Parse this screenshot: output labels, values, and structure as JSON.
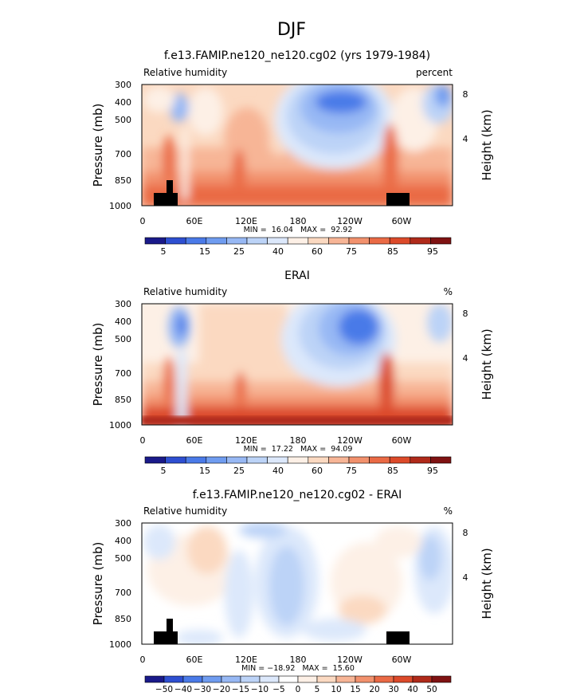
{
  "figure_title": "DJF",
  "chart_data": [
    {
      "type": "heatmap",
      "title": "f.e13.FAMIP.ne120_ne120.cg02 (yrs 1979-1984)",
      "left_label": "Relative humidity",
      "right_label": "percent",
      "ylabel": "Pressure (mb)",
      "ylabel_right": "Height (km)",
      "x_ticks": [
        "0",
        "60E",
        "120E",
        "180",
        "120W",
        "60W"
      ],
      "y_ticks": [
        "300",
        "400",
        "500",
        "700",
        "850",
        "1000"
      ],
      "right_ticks": [
        "8",
        "4"
      ],
      "stats": "MIN =  16.04   MAX =  92.92",
      "colorbar_labels": [
        "5",
        "15",
        "25",
        "40",
        "60",
        "75",
        "85",
        "95"
      ],
      "grid": false
    },
    {
      "type": "heatmap",
      "title": "ERAI",
      "left_label": "Relative humidity",
      "right_label": "%",
      "ylabel": "Pressure (mb)",
      "ylabel_right": "Height (km)",
      "x_ticks": [
        "0",
        "60E",
        "120E",
        "180",
        "120W",
        "60W"
      ],
      "y_ticks": [
        "300",
        "400",
        "500",
        "700",
        "850",
        "1000"
      ],
      "right_ticks": [
        "8",
        "4"
      ],
      "stats": "MIN =  17.22   MAX =  94.09",
      "colorbar_labels": [
        "5",
        "15",
        "25",
        "40",
        "60",
        "75",
        "85",
        "95"
      ],
      "grid": false
    },
    {
      "type": "heatmap",
      "title": "f.e13.FAMIP.ne120_ne120.cg02 - ERAI",
      "left_label": "Relative humidity",
      "right_label": "%",
      "ylabel": "Pressure (mb)",
      "ylabel_right": "Height (km)",
      "x_ticks": [
        "0",
        "60E",
        "120E",
        "180",
        "120W",
        "60W"
      ],
      "y_ticks": [
        "300",
        "400",
        "500",
        "700",
        "850",
        "1000"
      ],
      "right_ticks": [
        "8",
        "4"
      ],
      "stats": "MIN = −18.92   MAX =  15.60",
      "colorbar_labels": [
        "−50",
        "−40",
        "−30",
        "−20",
        "−15",
        "−10",
        "−5",
        "0",
        "5",
        "10",
        "15",
        "20",
        "30",
        "40",
        "50"
      ],
      "grid": false
    }
  ],
  "colors": {
    "abs_scale": [
      "#1a1a8a",
      "#2e4fd1",
      "#4a7ae8",
      "#6f9cf0",
      "#97b8f4",
      "#bcd3f7",
      "#dce8fb",
      "#fdf0e6",
      "#fbd9c1",
      "#f7b596",
      "#f2916d",
      "#ea6a45",
      "#dc4a2a",
      "#b02a1a",
      "#7f1212"
    ],
    "diff_scale": [
      "#1a1a8a",
      "#2e4fd1",
      "#4a7ae8",
      "#6f9cf0",
      "#97b8f4",
      "#bcd3f7",
      "#dce8fb",
      "#ffffff",
      "#fdf0e6",
      "#fbd9c1",
      "#f7b596",
      "#f2916d",
      "#ea6a45",
      "#dc4a2a",
      "#b02a1a",
      "#7f1212"
    ],
    "topography": "#000000"
  }
}
